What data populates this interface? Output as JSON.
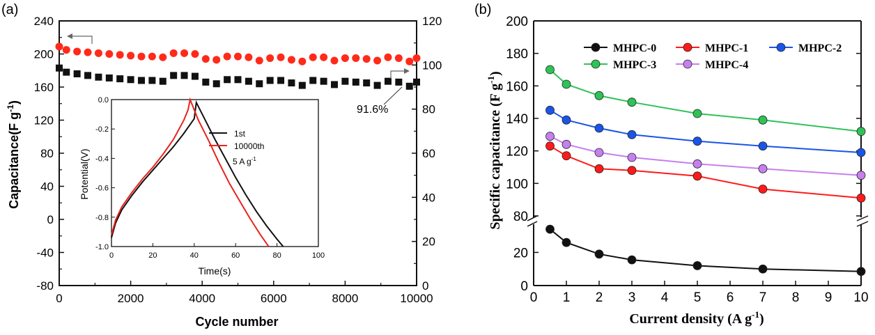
{
  "chart_data": [
    {
      "panel_label": "(a)",
      "type": "scatter",
      "xlabel": "Cycle number",
      "ylabel": "Capacitance(F g",
      "ylabel_sup": "-1",
      "ylabel_close": ")",
      "xlim": [
        0,
        10000
      ],
      "ylim_left": [
        -80,
        240
      ],
      "ylim_right": [
        0,
        120
      ],
      "x_ticks": [
        "0",
        "2000",
        "4000",
        "6000",
        "8000",
        "10000"
      ],
      "y_ticks_left": [
        "-80",
        "-40",
        "0",
        "40",
        "80",
        "120",
        "160",
        "200",
        "240"
      ],
      "y_ticks_right": [
        "0",
        "20",
        "40",
        "60",
        "80",
        "100",
        "120"
      ],
      "annotation": "91.6%",
      "series": [
        {
          "axis": "left",
          "marker": "circle",
          "color": "#ff2a1a",
          "x": [
            0,
            200,
            500,
            800,
            1100,
            1400,
            1700,
            2000,
            2300,
            2600,
            2900,
            3200,
            3500,
            3800,
            4100,
            4400,
            4700,
            5000,
            5300,
            5600,
            5900,
            6200,
            6500,
            6800,
            7100,
            7400,
            7700,
            8000,
            8300,
            8600,
            8900,
            9200,
            9500,
            9800,
            10000
          ],
          "values": [
            209,
            205,
            203,
            202,
            201,
            200,
            199,
            198,
            197,
            197,
            196,
            201,
            201,
            200,
            194,
            193,
            197,
            197,
            196,
            192,
            195,
            196,
            193,
            191,
            196,
            196,
            192,
            195,
            195,
            194,
            192,
            196,
            195,
            191,
            195
          ]
        },
        {
          "axis": "left",
          "marker": "square",
          "color": "#111111",
          "x": [
            0,
            200,
            500,
            800,
            1100,
            1400,
            1700,
            2000,
            2300,
            2600,
            2900,
            3200,
            3500,
            3800,
            4100,
            4400,
            4700,
            5000,
            5300,
            5600,
            5900,
            6200,
            6500,
            6800,
            7100,
            7400,
            7700,
            8000,
            8300,
            8600,
            8900,
            9200,
            9500,
            9800,
            10000
          ],
          "values": [
            183,
            178,
            176,
            174,
            172,
            171,
            170,
            169,
            168,
            168,
            167,
            174,
            174,
            173,
            166,
            164,
            169,
            169,
            167,
            164,
            168,
            168,
            165,
            162,
            168,
            167,
            163,
            167,
            166,
            165,
            162,
            167,
            166,
            161,
            166
          ]
        }
      ],
      "inset": {
        "type": "line",
        "xlabel": "Time(s)",
        "ylabel": "Potential(V)",
        "xlim": [
          0,
          100
        ],
        "ylim": [
          -1.0,
          0.0
        ],
        "x_ticks": [
          "0",
          "20",
          "40",
          "60",
          "80",
          "100"
        ],
        "y_ticks": [
          "0.0",
          "-0.2",
          "-0.4",
          "-0.6",
          "-0.8",
          "-1.0"
        ],
        "note": "5 A g",
        "note_sup": "-1",
        "series": [
          {
            "name": "1st",
            "color": "#111111",
            "x": [
              0,
              2,
              5,
              10,
              15,
              20,
              25,
              30,
              35,
              40,
              41,
              45,
              50,
              55,
              60,
              65,
              70,
              75,
              80,
              83
            ],
            "values": [
              -0.94,
              -0.84,
              -0.75,
              -0.65,
              -0.56,
              -0.48,
              -0.4,
              -0.32,
              -0.23,
              -0.13,
              -0.02,
              -0.13,
              -0.27,
              -0.4,
              -0.53,
              -0.65,
              -0.76,
              -0.86,
              -0.95,
              -1.0
            ]
          },
          {
            "name": "10000th",
            "color": "#e8231c",
            "x": [
              0,
              2,
              5,
              10,
              15,
              20,
              25,
              30,
              35,
              37,
              38,
              42,
              47,
              52,
              57,
              62,
              67,
              72,
              76
            ],
            "values": [
              -0.92,
              -0.82,
              -0.73,
              -0.63,
              -0.54,
              -0.46,
              -0.37,
              -0.27,
              -0.14,
              -0.07,
              0.0,
              -0.14,
              -0.28,
              -0.43,
              -0.57,
              -0.69,
              -0.81,
              -0.92,
              -1.0
            ]
          }
        ]
      }
    },
    {
      "panel_label": "(b)",
      "type": "line",
      "xlabel": "Current density (A g",
      "xlabel_sup": "-1",
      "xlabel_close": ")",
      "ylabel": "Specific capacitance (F g",
      "ylabel_sup": "-1",
      "ylabel_close": ")",
      "xlim": [
        0,
        10
      ],
      "x_ticks": [
        "0",
        "1",
        "2",
        "3",
        "4",
        "5",
        "6",
        "7",
        "8",
        "9",
        "10"
      ],
      "y_ticks_lower": [
        "0",
        "20"
      ],
      "y_ticks_upper": [
        "80",
        "100",
        "120",
        "140",
        "160",
        "180",
        "200"
      ],
      "ylim_lower": [
        0,
        37
      ],
      "ylim_upper": [
        80,
        200
      ],
      "axis_break": true,
      "categories": [
        0.5,
        1,
        2,
        3,
        5,
        7,
        10
      ],
      "series": [
        {
          "name": "MHPC-0",
          "color": "#111111",
          "segment": "lower",
          "values": [
            34,
            26,
            19,
            15.5,
            12,
            10,
            8.5
          ]
        },
        {
          "name": "MHPC-1",
          "color": "#ff1a1a",
          "segment": "upper",
          "values": [
            123,
            117,
            109,
            108,
            104.5,
            96.5,
            91
          ]
        },
        {
          "name": "MHPC-2",
          "color": "#1a55e8",
          "segment": "upper",
          "values": [
            145,
            139,
            134,
            130,
            126,
            123,
            119
          ]
        },
        {
          "name": "MHPC-3",
          "color": "#2fc257",
          "segment": "upper",
          "values": [
            170,
            161,
            154,
            150,
            143,
            139,
            132
          ]
        },
        {
          "name": "MHPC-4",
          "color": "#c77ff0",
          "segment": "upper",
          "values": [
            129,
            124,
            119,
            116,
            112,
            109,
            105
          ]
        }
      ]
    }
  ]
}
